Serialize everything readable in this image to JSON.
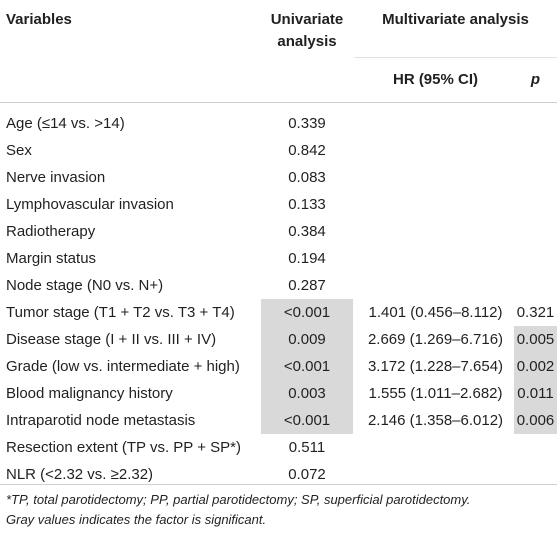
{
  "header": {
    "variables": "Variables",
    "univariate_line1": "Univariate",
    "univariate_line2": "analysis",
    "multivariate": "Multivariate analysis",
    "hr": "HR (95% CI)",
    "p": "p"
  },
  "rows": [
    {
      "variable": "Age (≤14 vs. >14)",
      "univariate": "0.339",
      "hr": "",
      "p": "",
      "uni_sig": false,
      "p_sig": false
    },
    {
      "variable": "Sex",
      "univariate": "0.842",
      "hr": "",
      "p": "",
      "uni_sig": false,
      "p_sig": false
    },
    {
      "variable": "Nerve invasion",
      "univariate": "0.083",
      "hr": "",
      "p": "",
      "uni_sig": false,
      "p_sig": false
    },
    {
      "variable": "Lymphovascular invasion",
      "univariate": "0.133",
      "hr": "",
      "p": "",
      "uni_sig": false,
      "p_sig": false
    },
    {
      "variable": "Radiotherapy",
      "univariate": "0.384",
      "hr": "",
      "p": "",
      "uni_sig": false,
      "p_sig": false
    },
    {
      "variable": "Margin status",
      "univariate": "0.194",
      "hr": "",
      "p": "",
      "uni_sig": false,
      "p_sig": false
    },
    {
      "variable": "Node stage (N0 vs. N+)",
      "univariate": "0.287",
      "hr": "",
      "p": "",
      "uni_sig": false,
      "p_sig": false
    },
    {
      "variable": "Tumor stage (T1 + T2 vs. T3 + T4)",
      "univariate": "<0.001",
      "hr": "1.401 (0.456–8.112)",
      "p": "0.321",
      "uni_sig": true,
      "p_sig": false
    },
    {
      "variable": "Disease stage (I + II vs. III + IV)",
      "univariate": "0.009",
      "hr": "2.669 (1.269–6.716)",
      "p": "0.005",
      "uni_sig": true,
      "p_sig": true
    },
    {
      "variable": "Grade (low vs. intermediate + high)",
      "univariate": "<0.001",
      "hr": "3.172 (1.228–7.654)",
      "p": "0.002",
      "uni_sig": true,
      "p_sig": true
    },
    {
      "variable": "Blood malignancy history",
      "univariate": "0.003",
      "hr": "1.555 (1.011–2.682)",
      "p": "0.011",
      "uni_sig": true,
      "p_sig": true
    },
    {
      "variable": "Intraparotid node metastasis",
      "univariate": "<0.001",
      "hr": "2.146 (1.358–6.012)",
      "p": "0.006",
      "uni_sig": true,
      "p_sig": true
    },
    {
      "variable": "Resection extent (TP vs. PP + SP*)",
      "univariate": "0.511",
      "hr": "",
      "p": "",
      "uni_sig": false,
      "p_sig": false
    },
    {
      "variable": "NLR (<2.32 vs. ≥2.32)",
      "univariate": "0.072",
      "hr": "",
      "p": "",
      "uni_sig": false,
      "p_sig": false
    }
  ],
  "footnote": {
    "line1": "*TP, total parotidectomy; PP, partial parotidectomy; SP, superficial parotidectomy.",
    "line2": "Gray values indicates the factor is significant."
  },
  "colors": {
    "shade": "#d9d9d9",
    "rule": "#cfcfcf",
    "text": "#231f20"
  }
}
